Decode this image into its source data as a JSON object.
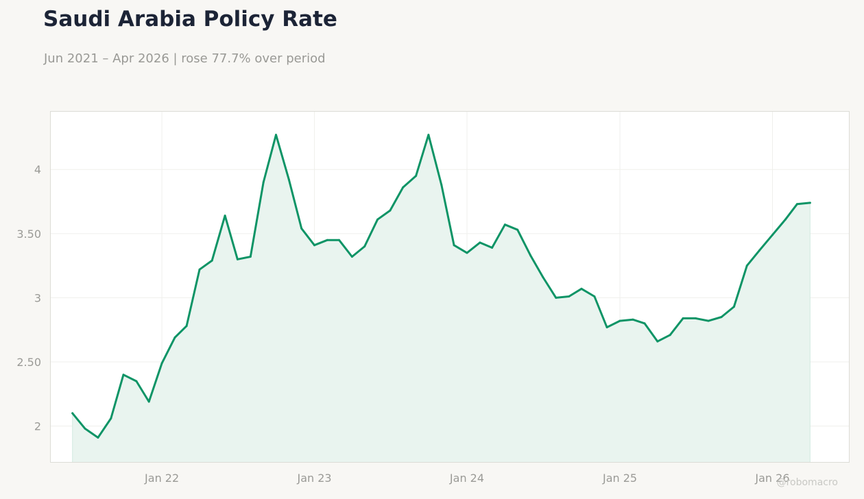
{
  "title": "Saudi Arabia Policy Rate",
  "subtitle": "Jun 2021 – Apr 2026 | rose 77.7% over period",
  "watermark": "@robomacro",
  "colors": {
    "line": "#0e9466",
    "area": "#e9f4ef",
    "title": "#1c2436",
    "muted": "#9a9a96"
  },
  "chart_data": {
    "type": "area",
    "title": "Saudi Arabia Policy Rate",
    "subtitle": "Jun 2021 – Apr 2026 | rose 77.7% over period",
    "xlabel": "",
    "ylabel": "",
    "grid": true,
    "ylim": [
      1.72,
      4.45
    ],
    "xlim": [
      "2021-04-10",
      "2026-07-03"
    ],
    "y_ticks": [
      {
        "value": 2,
        "label": "2"
      },
      {
        "value": 2.5,
        "label": "2.50"
      },
      {
        "value": 3,
        "label": "3"
      },
      {
        "value": 3.5,
        "label": "3.50"
      },
      {
        "value": 4,
        "label": "4"
      }
    ],
    "x_ticks": [
      {
        "value": "2022-01-01",
        "label": "Jan 22"
      },
      {
        "value": "2023-01-01",
        "label": "Jan 23"
      },
      {
        "value": "2024-01-01",
        "label": "Jan 24"
      },
      {
        "value": "2025-01-01",
        "label": "Jan 25"
      },
      {
        "value": "2026-01-01",
        "label": "Jan 26"
      }
    ],
    "series": [
      {
        "x": [
          "2021-06",
          "2021-07",
          "2021-08",
          "2021-09",
          "2021-10",
          "2021-11",
          "2021-12",
          "2022-01",
          "2022-02",
          "2022-03",
          "2022-04",
          "2022-05",
          "2022-06",
          "2022-07",
          "2022-08",
          "2022-09",
          "2022-10",
          "2022-11",
          "2022-12",
          "2023-01",
          "2023-02",
          "2023-03",
          "2023-04",
          "2023-05",
          "2023-06",
          "2023-07",
          "2023-08",
          "2023-09",
          "2023-10",
          "2023-11",
          "2023-12",
          "2024-01",
          "2024-02",
          "2024-03",
          "2024-04",
          "2024-05",
          "2024-06",
          "2024-07",
          "2024-08",
          "2024-09",
          "2024-10",
          "2024-11",
          "2024-12",
          "2025-01",
          "2025-02",
          "2025-03",
          "2025-04",
          "2025-05",
          "2025-06",
          "2025-07",
          "2025-08",
          "2025-09",
          "2025-10",
          "2025-11",
          "2025-12",
          "2026-01",
          "2026-02",
          "2026-03",
          "2026-04"
        ],
        "values": [
          2.1,
          1.98,
          1.91,
          2.06,
          2.4,
          2.35,
          2.19,
          2.49,
          2.69,
          2.78,
          3.22,
          3.29,
          3.64,
          3.3,
          3.32,
          3.9,
          4.27,
          3.92,
          3.54,
          3.41,
          3.45,
          3.45,
          3.32,
          3.4,
          3.61,
          3.68,
          3.86,
          3.95,
          4.27,
          3.88,
          3.41,
          3.35,
          3.43,
          3.39,
          3.57,
          3.53,
          3.33,
          3.16,
          3.0,
          3.01,
          3.07,
          3.01,
          2.77,
          2.82,
          2.83,
          2.8,
          2.66,
          2.71,
          2.84,
          2.84,
          2.82,
          2.85,
          2.93,
          3.25,
          3.37,
          3.49,
          3.61,
          3.73,
          3.74
        ]
      }
    ]
  }
}
